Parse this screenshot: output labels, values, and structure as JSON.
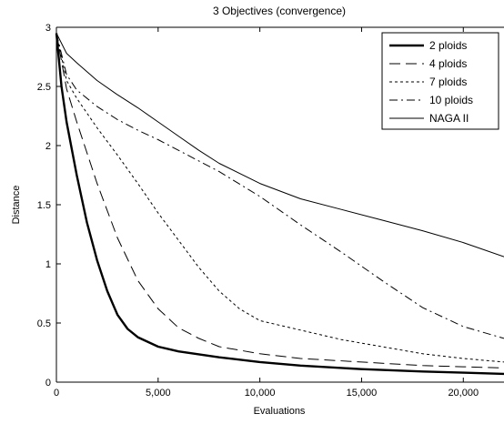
{
  "chart_data": {
    "type": "line",
    "title": "3 Objectives (convergence)",
    "xlabel": "Evaluations",
    "ylabel": "Distance",
    "xlim": [
      0,
      22000
    ],
    "ylim": [
      0,
      3
    ],
    "xticks": [
      0,
      5000,
      10000,
      15000,
      20000
    ],
    "xtick_labels": [
      "0",
      "5,000",
      "10,000",
      "15,000",
      "20,000"
    ],
    "yticks": [
      0,
      0.5,
      1,
      1.5,
      2,
      2.5,
      3
    ],
    "ytick_labels": [
      "0",
      "0.5",
      "1",
      "1.5",
      "2",
      "2.5",
      "3"
    ],
    "grid": false,
    "legend_position": "top-right",
    "series": [
      {
        "name": "2 ploids",
        "style": "thick-solid",
        "x": [
          0,
          250,
          500,
          1000,
          1500,
          2000,
          2500,
          3000,
          3500,
          4000,
          5000,
          6000,
          8000,
          10000,
          12000,
          15000,
          18000,
          20000,
          22000
        ],
        "y": [
          2.95,
          2.5,
          2.2,
          1.75,
          1.35,
          1.03,
          0.77,
          0.57,
          0.45,
          0.38,
          0.3,
          0.26,
          0.21,
          0.17,
          0.14,
          0.11,
          0.09,
          0.08,
          0.07
        ]
      },
      {
        "name": "4 ploids",
        "style": "long-dash",
        "x": [
          0,
          500,
          1000,
          2000,
          3000,
          4000,
          5000,
          6000,
          7000,
          8000,
          10000,
          12000,
          15000,
          18000,
          20000,
          22000
        ],
        "y": [
          2.95,
          2.48,
          2.2,
          1.68,
          1.22,
          0.86,
          0.62,
          0.46,
          0.37,
          0.3,
          0.24,
          0.2,
          0.17,
          0.14,
          0.13,
          0.12
        ]
      },
      {
        "name": "7 ploids",
        "style": "short-dash",
        "x": [
          0,
          500,
          1000,
          2000,
          3000,
          4000,
          5000,
          6000,
          7000,
          8000,
          9000,
          10000,
          12000,
          14000,
          16000,
          18000,
          20000,
          22000
        ],
        "y": [
          2.95,
          2.55,
          2.4,
          2.15,
          1.92,
          1.68,
          1.43,
          1.2,
          0.97,
          0.77,
          0.62,
          0.52,
          0.44,
          0.36,
          0.3,
          0.24,
          0.2,
          0.17
        ]
      },
      {
        "name": "10 ploids",
        "style": "dash-dot",
        "x": [
          0,
          500,
          1000,
          2000,
          3000,
          4000,
          5000,
          6000,
          7000,
          8000,
          10000,
          12000,
          14000,
          16000,
          18000,
          20000,
          22000
        ],
        "y": [
          2.95,
          2.6,
          2.47,
          2.33,
          2.22,
          2.13,
          2.05,
          1.96,
          1.87,
          1.78,
          1.57,
          1.33,
          1.1,
          0.86,
          0.63,
          0.47,
          0.37
        ]
      },
      {
        "name": "NAGA II",
        "style": "thin-solid",
        "x": [
          0,
          500,
          1000,
          2000,
          3000,
          4000,
          5000,
          6000,
          7000,
          8000,
          10000,
          12000,
          14000,
          16000,
          18000,
          20000,
          22000
        ],
        "y": [
          2.95,
          2.78,
          2.7,
          2.55,
          2.43,
          2.32,
          2.2,
          2.08,
          1.96,
          1.85,
          1.68,
          1.55,
          1.46,
          1.37,
          1.28,
          1.18,
          1.06
        ]
      }
    ]
  }
}
